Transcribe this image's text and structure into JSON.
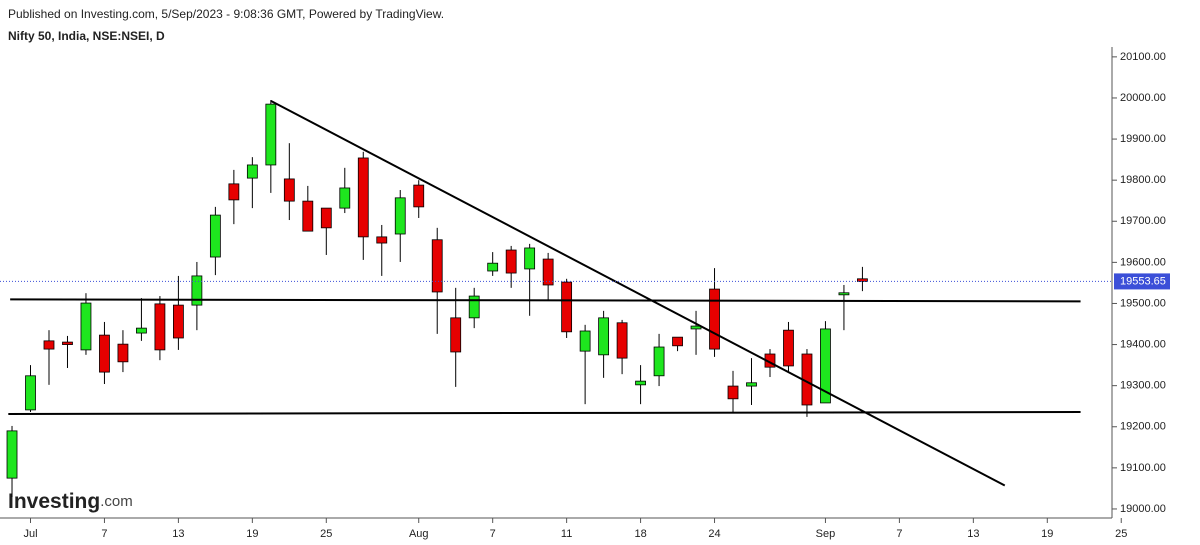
{
  "chart_data": {
    "type": "candlestick",
    "published": "Published on Investing.com, 5/Sep/2023 - 9:08:36 GMT, Powered by TradingView.",
    "title": "Nifty 50, India, NSE:NSEI, D",
    "logo": {
      "brand": "Investing",
      "suffix": ".com"
    },
    "up_color": "#1ee61e",
    "down_color": "#e60000",
    "open": [
      19075,
      19241,
      19409,
      19406,
      19387,
      19423,
      19401,
      19428,
      19499,
      19496,
      19496,
      19613,
      19791,
      19805,
      19837,
      19803,
      19749,
      19732,
      19732,
      19854,
      19662,
      19669,
      19788,
      19655,
      19465,
      19465,
      19579,
      19630,
      19584,
      19608,
      19552,
      19384,
      19375,
      19453,
      19302,
      19324,
      19418,
      19438,
      19535,
      19299,
      19299,
      19377,
      19435,
      19377,
      19258,
      19521,
      19560
    ],
    "high": [
      19202,
      19350,
      19435,
      19421,
      19525,
      19455,
      19435,
      19513,
      19518,
      19567,
      19601,
      19735,
      19825,
      19856,
      19995,
      19890,
      19786,
      19732,
      19830,
      19869,
      19691,
      19776,
      19800,
      19684,
      19538,
      19538,
      19625,
      19640,
      19645,
      19623,
      19560,
      19448,
      19482,
      19460,
      19350,
      19426,
      19418,
      19482,
      19586,
      19336,
      19367,
      19389,
      19455,
      19389,
      19457,
      19545,
      19589
    ],
    "low": [
      19029,
      19236,
      19302,
      19343,
      19375,
      19304,
      19333,
      19409,
      19362,
      19387,
      19435,
      19569,
      19693,
      19732,
      19769,
      19703,
      19676,
      19618,
      19720,
      19606,
      19567,
      19601,
      19708,
      19426,
      19297,
      19440,
      19567,
      19538,
      19470,
      19508,
      19416,
      19255,
      19319,
      19328,
      19255,
      19299,
      19384,
      19375,
      19370,
      19234,
      19253,
      19321,
      19331,
      19224,
      19258,
      19435,
      19530
    ],
    "close": [
      19190,
      19324,
      19389,
      19400,
      19501,
      19333,
      19358,
      19440,
      19387,
      19416,
      19567,
      19715,
      19752,
      19837,
      19985,
      19749,
      19676,
      19684,
      19781,
      19662,
      19647,
      19757,
      19735,
      19528,
      19382,
      19518,
      19598,
      19574,
      19635,
      19545,
      19431,
      19433,
      19465,
      19367,
      19311,
      19394,
      19397,
      19445,
      19389,
      19268,
      19307,
      19345,
      19348,
      19253,
      19438,
      19526,
      19553.65
    ],
    "last_price": 19553.65,
    "last_price_color": "#3b4fd8",
    "trendlines": [
      {
        "x": [
          14,
          53.7
        ],
        "y": [
          19993,
          19057
        ]
      },
      {
        "x": [
          -0.1,
          57.8
        ],
        "y": [
          19510,
          19505
        ]
      },
      {
        "x": [
          -0.2,
          57.8
        ],
        "y": [
          19231,
          19236
        ]
      }
    ],
    "xlim": [
      -0.65,
      59.5
    ],
    "xticks": [
      {
        "value": 1,
        "label": "Jul"
      },
      {
        "value": 5,
        "label": "7"
      },
      {
        "value": 9,
        "label": "13"
      },
      {
        "value": 13,
        "label": "19"
      },
      {
        "value": 17,
        "label": "25"
      },
      {
        "value": 22,
        "label": "Aug"
      },
      {
        "value": 26,
        "label": "7"
      },
      {
        "value": 30,
        "label": "11"
      },
      {
        "value": 34,
        "label": "18"
      },
      {
        "value": 38,
        "label": "24"
      },
      {
        "value": 44,
        "label": "Sep"
      },
      {
        "value": 48,
        "label": "7"
      },
      {
        "value": 52,
        "label": "13"
      },
      {
        "value": 56,
        "label": "19"
      },
      {
        "value": 60,
        "label": "25"
      }
    ],
    "ylim": [
      18978,
      20124
    ],
    "yticks": [
      {
        "value": 19000,
        "label": "19000.00"
      },
      {
        "value": 19100,
        "label": "19100.00"
      },
      {
        "value": 19200,
        "label": "19200.00"
      },
      {
        "value": 19300,
        "label": "19300.00"
      },
      {
        "value": 19400,
        "label": "19400.00"
      },
      {
        "value": 19500,
        "label": "19500.00"
      },
      {
        "value": 19600,
        "label": "19600.00"
      },
      {
        "value": 19700,
        "label": "19700.00"
      },
      {
        "value": 19800,
        "label": "19800.00"
      },
      {
        "value": 19900,
        "label": "19900.00"
      },
      {
        "value": 20000,
        "label": "20000.00"
      },
      {
        "value": 20100,
        "label": "20100.00"
      }
    ]
  }
}
